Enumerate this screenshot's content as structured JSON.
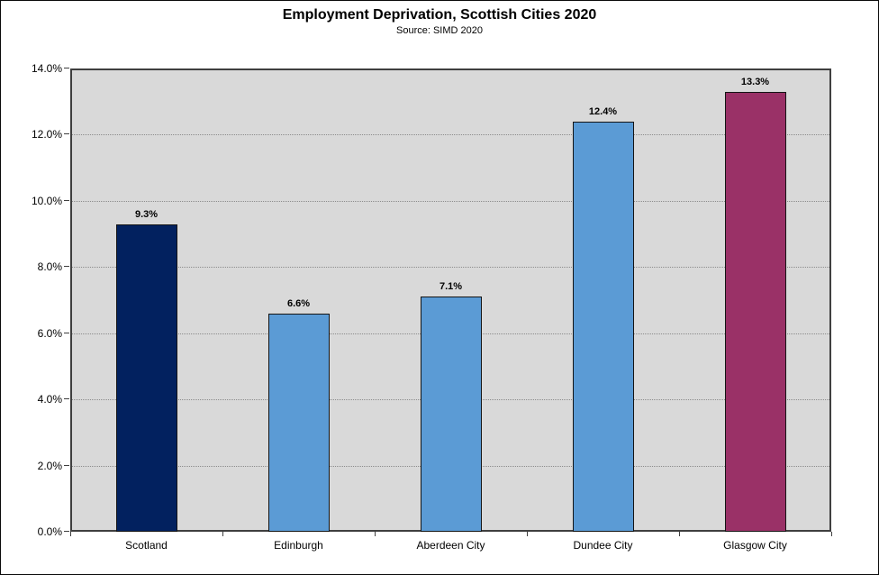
{
  "title": "Employment Deprivation, Scottish Cities 2020",
  "subtitle": "Source: SIMD 2020",
  "colors": {
    "plot_background": "#d9d9d9",
    "plot_border": "#3f3f3f",
    "gridline": "#8c8c8c",
    "bar_border": "#141414",
    "navy": "#02215f",
    "blue": "#5b9bd5",
    "magenta": "#9a3167"
  },
  "chart_data": {
    "type": "bar",
    "title": "Employment Deprivation, Scottish Cities 2020",
    "subtitle": "Source: SIMD 2020",
    "categories": [
      "Scotland",
      "Edinburgh",
      "Aberdeen City",
      "Dundee City",
      "Glasgow City"
    ],
    "values": [
      9.3,
      6.6,
      7.1,
      12.4,
      13.3
    ],
    "data_labels": [
      "9.3%",
      "6.6%",
      "7.1%",
      "12.4%",
      "13.3%"
    ],
    "bar_colors": [
      "#02215f",
      "#5b9bd5",
      "#5b9bd5",
      "#5b9bd5",
      "#9a3167"
    ],
    "xlabel": "",
    "ylabel": "",
    "ylim": [
      0,
      14
    ],
    "ytick_step": 2,
    "ytick_labels": [
      "0.0%",
      "2.0%",
      "4.0%",
      "6.0%",
      "8.0%",
      "10.0%",
      "12.0%",
      "14.0%"
    ],
    "grid": "horizontal-dotted",
    "legend_position": "none",
    "plot_area_background": "#d9d9d9"
  }
}
